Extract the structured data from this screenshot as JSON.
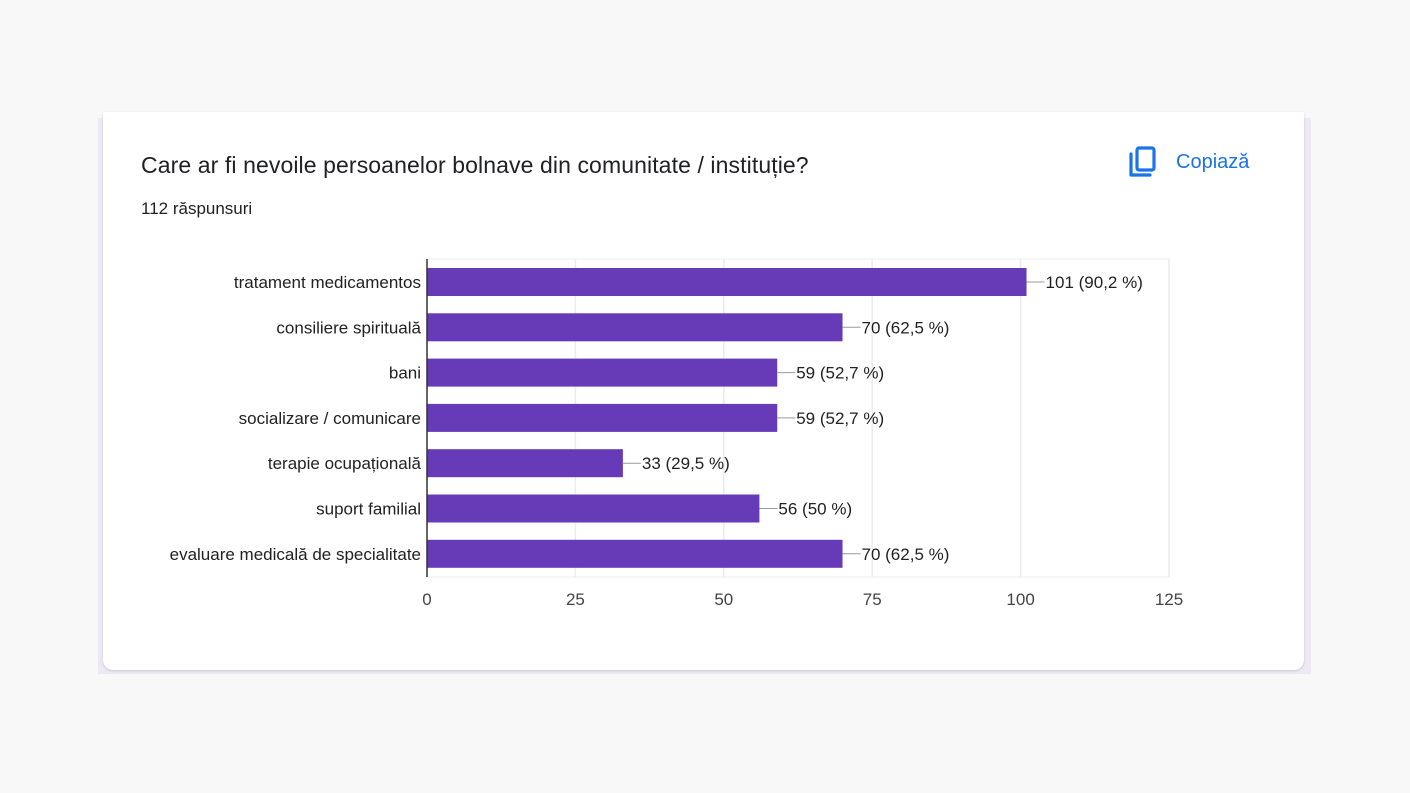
{
  "card": {
    "title": "Care ar fi nevoile persoanelor bolnave din comunitate / instituție?",
    "responses": "112 răspunsuri",
    "copy_label": "Copiază",
    "copy_icon": "copy-icon"
  },
  "chart_data": {
    "type": "bar",
    "orientation": "horizontal",
    "categories": [
      "tratament medicamentos",
      "consiliere spirituală",
      "bani",
      "socializare / comunicare",
      "terapie ocupațională",
      "suport familial",
      "evaluare medicală de specialitate"
    ],
    "values": [
      101,
      70,
      59,
      59,
      33,
      56,
      70
    ],
    "data_labels": [
      "101 (90,2 %)",
      "70 (62,5 %)",
      "59 (52,7 %)",
      "59 (52,7 %)",
      "33 (29,5 %)",
      "56 (50 %)",
      "70 (62,5 %)"
    ],
    "xlim": [
      0,
      125
    ],
    "xticks": [
      "0",
      "25",
      "50",
      "75",
      "100",
      "125"
    ],
    "grid": true,
    "bar_color": "#673ab7"
  }
}
